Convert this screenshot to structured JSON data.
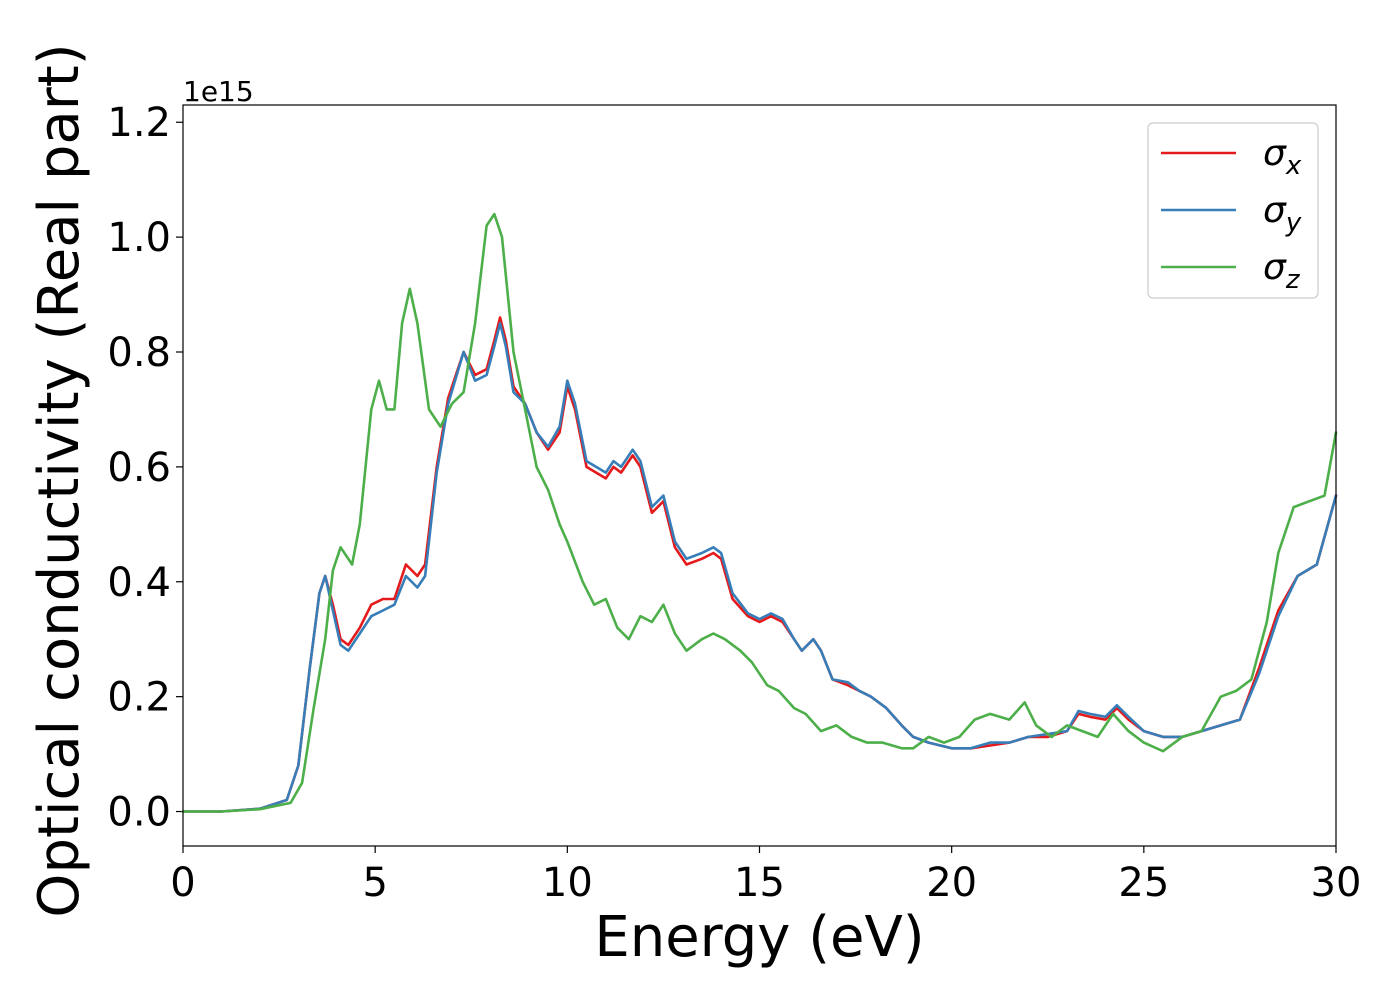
{
  "chart_data": {
    "type": "line",
    "xlabel": "Energy (eV)",
    "ylabel": "Optical conductivity (Real part)",
    "offset_label": "1e15",
    "xlim": [
      0,
      30
    ],
    "ylim": [
      -0.06,
      1.23
    ],
    "scale_factor": 1000000000000000.0,
    "x_ticks": [
      0,
      5,
      10,
      15,
      20,
      25,
      30
    ],
    "x_tick_labels": [
      "0",
      "5",
      "10",
      "15",
      "20",
      "25",
      "30"
    ],
    "y_ticks": [
      0.0,
      0.2,
      0.4,
      0.6,
      0.8,
      1.0,
      1.2
    ],
    "y_tick_labels": [
      "0.0",
      "0.2",
      "0.4",
      "0.6",
      "0.8",
      "1.0",
      "1.2"
    ],
    "grid": false,
    "legend": {
      "position": "top-right"
    },
    "series": [
      {
        "name": "σx",
        "legend_base": "σ",
        "legend_sub": "x",
        "color": "#e41a1c",
        "points": [
          [
            0,
            0
          ],
          [
            1,
            0
          ],
          [
            2,
            0.005
          ],
          [
            2.7,
            0.02
          ],
          [
            3.0,
            0.08
          ],
          [
            3.3,
            0.25
          ],
          [
            3.55,
            0.38
          ],
          [
            3.7,
            0.41
          ],
          [
            3.9,
            0.36
          ],
          [
            4.1,
            0.3
          ],
          [
            4.3,
            0.29
          ],
          [
            4.6,
            0.32
          ],
          [
            4.9,
            0.36
          ],
          [
            5.2,
            0.37
          ],
          [
            5.5,
            0.37
          ],
          [
            5.8,
            0.43
          ],
          [
            6.1,
            0.41
          ],
          [
            6.3,
            0.43
          ],
          [
            6.6,
            0.6
          ],
          [
            6.9,
            0.72
          ],
          [
            7.3,
            0.8
          ],
          [
            7.6,
            0.76
          ],
          [
            7.9,
            0.77
          ],
          [
            8.1,
            0.82
          ],
          [
            8.25,
            0.86
          ],
          [
            8.4,
            0.82
          ],
          [
            8.6,
            0.74
          ],
          [
            8.9,
            0.71
          ],
          [
            9.2,
            0.66
          ],
          [
            9.5,
            0.63
          ],
          [
            9.8,
            0.66
          ],
          [
            10.0,
            0.74
          ],
          [
            10.2,
            0.7
          ],
          [
            10.5,
            0.6
          ],
          [
            11.0,
            0.58
          ],
          [
            11.2,
            0.6
          ],
          [
            11.4,
            0.59
          ],
          [
            11.7,
            0.62
          ],
          [
            11.9,
            0.6
          ],
          [
            12.2,
            0.52
          ],
          [
            12.5,
            0.54
          ],
          [
            12.8,
            0.46
          ],
          [
            13.1,
            0.43
          ],
          [
            13.5,
            0.44
          ],
          [
            13.8,
            0.45
          ],
          [
            14.0,
            0.44
          ],
          [
            14.3,
            0.37
          ],
          [
            14.7,
            0.34
          ],
          [
            15.0,
            0.33
          ],
          [
            15.3,
            0.34
          ],
          [
            15.6,
            0.33
          ],
          [
            15.9,
            0.3
          ],
          [
            16.1,
            0.28
          ],
          [
            16.4,
            0.3
          ],
          [
            16.6,
            0.28
          ],
          [
            16.9,
            0.23
          ],
          [
            17.3,
            0.22
          ],
          [
            17.6,
            0.21
          ],
          [
            17.9,
            0.2
          ],
          [
            18.3,
            0.18
          ],
          [
            18.7,
            0.15
          ],
          [
            19.0,
            0.13
          ],
          [
            19.4,
            0.12
          ],
          [
            20.0,
            0.11
          ],
          [
            20.5,
            0.11
          ],
          [
            21.0,
            0.115
          ],
          [
            21.5,
            0.12
          ],
          [
            22.0,
            0.13
          ],
          [
            22.5,
            0.13
          ],
          [
            23.0,
            0.14
          ],
          [
            23.3,
            0.17
          ],
          [
            23.6,
            0.165
          ],
          [
            24.0,
            0.16
          ],
          [
            24.3,
            0.18
          ],
          [
            24.6,
            0.16
          ],
          [
            25.0,
            0.14
          ],
          [
            25.5,
            0.13
          ],
          [
            26.0,
            0.13
          ],
          [
            26.5,
            0.14
          ],
          [
            27.0,
            0.15
          ],
          [
            27.5,
            0.16
          ],
          [
            28.0,
            0.25
          ],
          [
            28.5,
            0.35
          ],
          [
            29.0,
            0.41
          ],
          [
            29.5,
            0.43
          ],
          [
            30.0,
            0.55
          ]
        ]
      },
      {
        "name": "σy",
        "legend_base": "σ",
        "legend_sub": "y",
        "color": "#377eb8",
        "points": [
          [
            0,
            0
          ],
          [
            1,
            0
          ],
          [
            2,
            0.005
          ],
          [
            2.7,
            0.02
          ],
          [
            3.0,
            0.08
          ],
          [
            3.3,
            0.25
          ],
          [
            3.55,
            0.38
          ],
          [
            3.7,
            0.41
          ],
          [
            3.9,
            0.35
          ],
          [
            4.1,
            0.29
          ],
          [
            4.3,
            0.28
          ],
          [
            4.6,
            0.31
          ],
          [
            4.9,
            0.34
          ],
          [
            5.2,
            0.35
          ],
          [
            5.5,
            0.36
          ],
          [
            5.8,
            0.41
          ],
          [
            6.1,
            0.39
          ],
          [
            6.3,
            0.41
          ],
          [
            6.6,
            0.59
          ],
          [
            6.9,
            0.71
          ],
          [
            7.3,
            0.8
          ],
          [
            7.6,
            0.75
          ],
          [
            7.9,
            0.76
          ],
          [
            8.1,
            0.81
          ],
          [
            8.25,
            0.85
          ],
          [
            8.4,
            0.81
          ],
          [
            8.6,
            0.73
          ],
          [
            8.9,
            0.71
          ],
          [
            9.2,
            0.66
          ],
          [
            9.5,
            0.635
          ],
          [
            9.8,
            0.67
          ],
          [
            10.0,
            0.75
          ],
          [
            10.2,
            0.71
          ],
          [
            10.5,
            0.61
          ],
          [
            11.0,
            0.59
          ],
          [
            11.2,
            0.61
          ],
          [
            11.4,
            0.6
          ],
          [
            11.7,
            0.63
          ],
          [
            11.9,
            0.61
          ],
          [
            12.2,
            0.53
          ],
          [
            12.5,
            0.55
          ],
          [
            12.8,
            0.47
          ],
          [
            13.1,
            0.44
          ],
          [
            13.5,
            0.45
          ],
          [
            13.8,
            0.46
          ],
          [
            14.0,
            0.45
          ],
          [
            14.3,
            0.38
          ],
          [
            14.7,
            0.345
          ],
          [
            15.0,
            0.335
          ],
          [
            15.3,
            0.345
          ],
          [
            15.6,
            0.335
          ],
          [
            15.9,
            0.3
          ],
          [
            16.1,
            0.28
          ],
          [
            16.4,
            0.3
          ],
          [
            16.6,
            0.28
          ],
          [
            16.9,
            0.23
          ],
          [
            17.3,
            0.225
          ],
          [
            17.6,
            0.21
          ],
          [
            17.9,
            0.2
          ],
          [
            18.3,
            0.18
          ],
          [
            18.7,
            0.15
          ],
          [
            19.0,
            0.13
          ],
          [
            19.4,
            0.12
          ],
          [
            20.0,
            0.11
          ],
          [
            20.5,
            0.11
          ],
          [
            21.0,
            0.12
          ],
          [
            21.5,
            0.12
          ],
          [
            22.0,
            0.13
          ],
          [
            22.5,
            0.135
          ],
          [
            23.0,
            0.14
          ],
          [
            23.3,
            0.175
          ],
          [
            23.6,
            0.17
          ],
          [
            24.0,
            0.165
          ],
          [
            24.3,
            0.185
          ],
          [
            24.6,
            0.165
          ],
          [
            25.0,
            0.14
          ],
          [
            25.5,
            0.13
          ],
          [
            26.0,
            0.13
          ],
          [
            26.5,
            0.14
          ],
          [
            27.0,
            0.15
          ],
          [
            27.5,
            0.16
          ],
          [
            28.0,
            0.24
          ],
          [
            28.5,
            0.34
          ],
          [
            29.0,
            0.41
          ],
          [
            29.5,
            0.43
          ],
          [
            30.0,
            0.55
          ]
        ]
      },
      {
        "name": "σz",
        "legend_base": "σ",
        "legend_sub": "z",
        "color": "#4daf4a",
        "points": [
          [
            0,
            0
          ],
          [
            1,
            0
          ],
          [
            2,
            0.004
          ],
          [
            2.8,
            0.015
          ],
          [
            3.1,
            0.05
          ],
          [
            3.4,
            0.18
          ],
          [
            3.7,
            0.3
          ],
          [
            3.9,
            0.42
          ],
          [
            4.1,
            0.46
          ],
          [
            4.4,
            0.43
          ],
          [
            4.6,
            0.5
          ],
          [
            4.9,
            0.7
          ],
          [
            5.1,
            0.75
          ],
          [
            5.3,
            0.7
          ],
          [
            5.5,
            0.7
          ],
          [
            5.7,
            0.85
          ],
          [
            5.9,
            0.91
          ],
          [
            6.1,
            0.85
          ],
          [
            6.4,
            0.7
          ],
          [
            6.7,
            0.67
          ],
          [
            7.0,
            0.71
          ],
          [
            7.3,
            0.73
          ],
          [
            7.6,
            0.85
          ],
          [
            7.9,
            1.02
          ],
          [
            8.1,
            1.04
          ],
          [
            8.3,
            1.0
          ],
          [
            8.6,
            0.8
          ],
          [
            8.9,
            0.7
          ],
          [
            9.2,
            0.6
          ],
          [
            9.5,
            0.56
          ],
          [
            9.8,
            0.5
          ],
          [
            10.0,
            0.47
          ],
          [
            10.4,
            0.4
          ],
          [
            10.7,
            0.36
          ],
          [
            11.0,
            0.37
          ],
          [
            11.3,
            0.32
          ],
          [
            11.6,
            0.3
          ],
          [
            11.9,
            0.34
          ],
          [
            12.2,
            0.33
          ],
          [
            12.5,
            0.36
          ],
          [
            12.8,
            0.31
          ],
          [
            13.1,
            0.28
          ],
          [
            13.5,
            0.3
          ],
          [
            13.8,
            0.31
          ],
          [
            14.1,
            0.3
          ],
          [
            14.5,
            0.28
          ],
          [
            14.8,
            0.26
          ],
          [
            15.2,
            0.22
          ],
          [
            15.5,
            0.21
          ],
          [
            15.9,
            0.18
          ],
          [
            16.2,
            0.17
          ],
          [
            16.6,
            0.14
          ],
          [
            17.0,
            0.15
          ],
          [
            17.4,
            0.13
          ],
          [
            17.8,
            0.12
          ],
          [
            18.2,
            0.12
          ],
          [
            18.7,
            0.11
          ],
          [
            19.0,
            0.11
          ],
          [
            19.4,
            0.13
          ],
          [
            19.8,
            0.12
          ],
          [
            20.2,
            0.13
          ],
          [
            20.6,
            0.16
          ],
          [
            21.0,
            0.17
          ],
          [
            21.5,
            0.16
          ],
          [
            21.9,
            0.19
          ],
          [
            22.2,
            0.15
          ],
          [
            22.6,
            0.13
          ],
          [
            23.0,
            0.15
          ],
          [
            23.4,
            0.14
          ],
          [
            23.8,
            0.13
          ],
          [
            24.2,
            0.17
          ],
          [
            24.6,
            0.14
          ],
          [
            25.0,
            0.12
          ],
          [
            25.5,
            0.105
          ],
          [
            26.0,
            0.13
          ],
          [
            26.5,
            0.14
          ],
          [
            27.0,
            0.2
          ],
          [
            27.4,
            0.21
          ],
          [
            27.8,
            0.23
          ],
          [
            28.2,
            0.33
          ],
          [
            28.5,
            0.45
          ],
          [
            28.9,
            0.53
          ],
          [
            29.3,
            0.54
          ],
          [
            29.7,
            0.55
          ],
          [
            30.0,
            0.66
          ]
        ]
      }
    ]
  }
}
